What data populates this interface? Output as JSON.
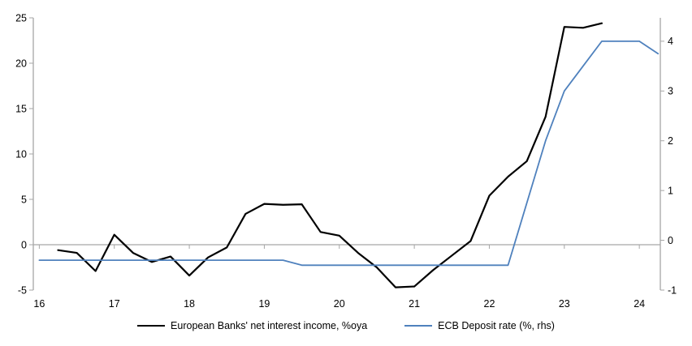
{
  "chart_data": {
    "type": "line",
    "title": "",
    "legend_position": "bottom",
    "grid": "zero-line-only",
    "axis_color": "#a6a6a6",
    "background": "#ffffff",
    "series": [
      {
        "name": "European Banks' net interest income, %oya",
        "axis": "left",
        "color": "#000000",
        "stroke_width": 2.2,
        "x_start": 2016.25,
        "x_step": 0.25,
        "values": [
          -0.6,
          -0.9,
          -2.9,
          1.1,
          -0.9,
          -1.9,
          -1.3,
          -3.4,
          -1.4,
          -0.3,
          3.4,
          4.5,
          4.4,
          4.45,
          1.4,
          1.0,
          -0.9,
          -2.5,
          -4.7,
          -4.6,
          -2.8,
          -1.2,
          0.4,
          5.4,
          7.5,
          9.2,
          14.1,
          24.0,
          23.9,
          24.4
        ]
      },
      {
        "name": "ECB Deposit rate (%, rhs)",
        "axis": "right",
        "color": "#4f81bd",
        "stroke_width": 1.8,
        "x_start": 2016.0,
        "x_step": 0.25,
        "values": [
          -0.4,
          -0.4,
          -0.4,
          -0.4,
          -0.4,
          -0.4,
          -0.4,
          -0.4,
          -0.4,
          -0.4,
          -0.4,
          -0.4,
          -0.4,
          -0.4,
          -0.5,
          -0.5,
          -0.5,
          -0.5,
          -0.5,
          -0.5,
          -0.5,
          -0.5,
          -0.5,
          -0.5,
          -0.5,
          -0.5,
          0.75,
          2.0,
          3.0,
          3.5,
          4.0,
          4.0,
          4.0,
          3.75
        ]
      }
    ],
    "left_axis": {
      "min": -5,
      "max": 25,
      "ticks": [
        25,
        20,
        15,
        10,
        5,
        0,
        -5
      ],
      "tick_labels": [
        "25",
        "20",
        "15",
        "10",
        "5",
        "0",
        "-5"
      ]
    },
    "right_axis": {
      "min": -1.0,
      "max": 4.47,
      "ticks": [
        4,
        3,
        2,
        1,
        0,
        -1
      ],
      "tick_labels": [
        "4",
        "3",
        "2",
        "1",
        "0",
        "-1"
      ]
    },
    "x_axis": {
      "min": 2015.92,
      "max": 2024.28,
      "ticks": [
        2016,
        2017,
        2018,
        2019,
        2020,
        2021,
        2022,
        2023,
        2024
      ],
      "tick_labels": [
        "16",
        "17",
        "18",
        "19",
        "20",
        "21",
        "22",
        "23",
        "24"
      ]
    }
  }
}
